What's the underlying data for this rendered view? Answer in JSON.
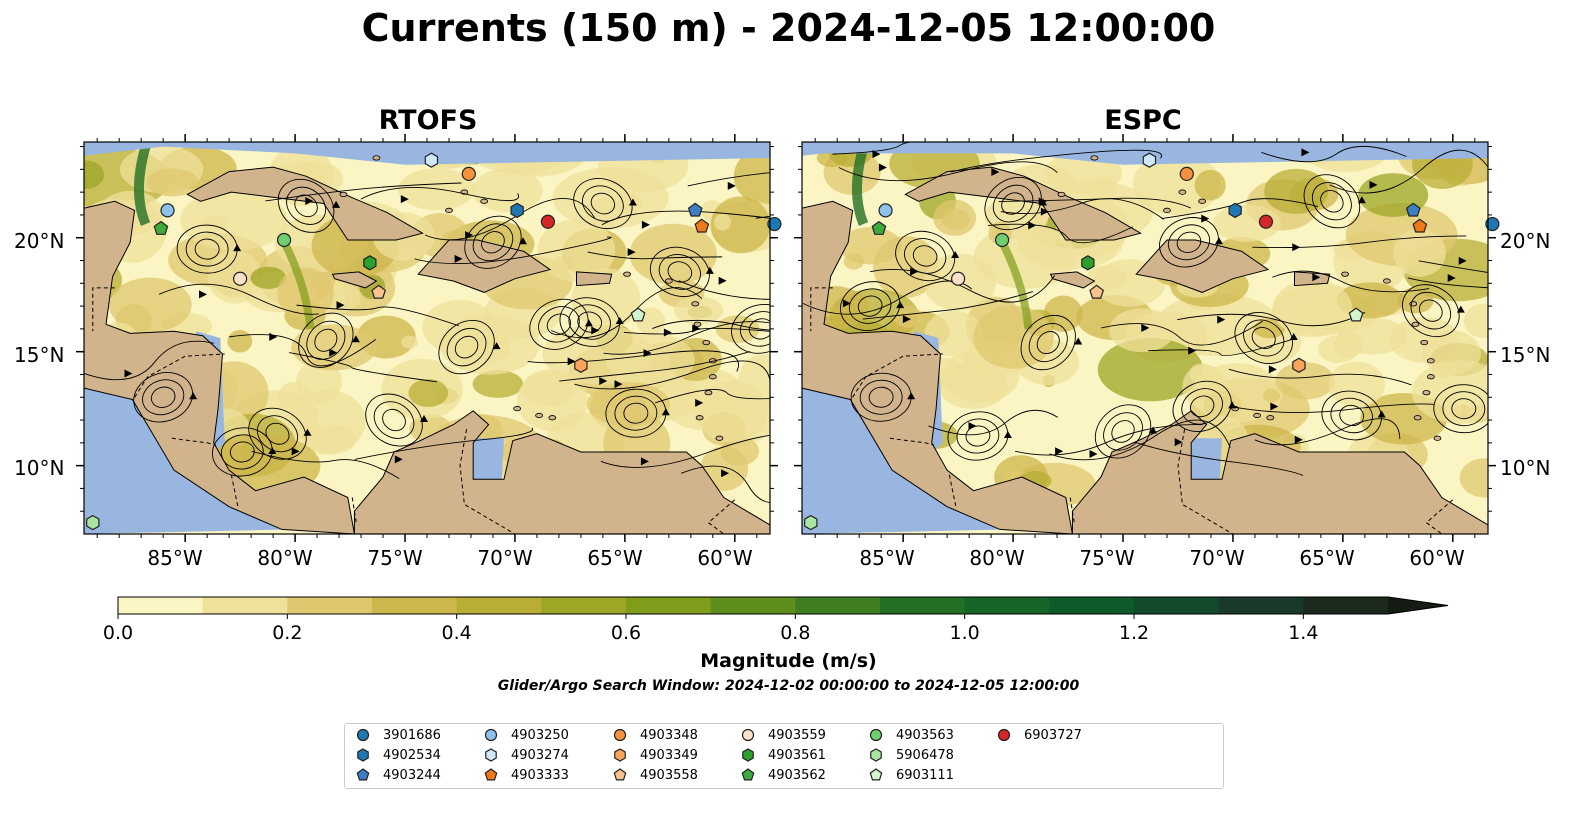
{
  "title": "Currents (150 m) - 2024-12-05 12:00:00",
  "panels": [
    {
      "title": "RTOFS"
    },
    {
      "title": "ESPC"
    }
  ],
  "axes": {
    "lat_ticks": [
      "20°N",
      "15°N",
      "10°N"
    ],
    "lon_ticks": [
      "85°W",
      "80°W",
      "75°W",
      "70°W",
      "65°W",
      "60°W"
    ],
    "lat_range": [
      7.0,
      24.2
    ],
    "lon_range": [
      -89.6,
      -58.4
    ]
  },
  "colorbar": {
    "label": "Magnitude (m/s)",
    "ticks": [
      "0.0",
      "0.2",
      "0.4",
      "0.6",
      "0.8",
      "1.0",
      "1.2",
      "1.4"
    ],
    "range": [
      0.0,
      1.5
    ],
    "extend": "max",
    "colors": [
      "#fbf5c4",
      "#efe09a",
      "#dfc76f",
      "#cdb64b",
      "#b8ad35",
      "#9da625",
      "#7f9c1a",
      "#5f8d1e",
      "#3f7f22",
      "#237024",
      "#146526",
      "#0f5a2b",
      "#134a2a",
      "#19392a",
      "#1c2a1e",
      "#141c14"
    ]
  },
  "search_window": "Glider/Argo Search Window: 2024-12-02 00:00:00 to 2024-12-05 12:00:00",
  "map_colors": {
    "land": "#d2b48c",
    "water": "#98b6e0",
    "streamline": "#000000"
  },
  "floats": [
    {
      "id": "3901686",
      "marker": "circle",
      "color": "#1f77b4",
      "lon": -58.2,
      "lat": 20.6
    },
    {
      "id": "4902534",
      "marker": "hexagon",
      "color": "#1f77b4",
      "lon": -69.9,
      "lat": 21.2
    },
    {
      "id": "4903244",
      "marker": "pentagon",
      "color": "#3d7fc0",
      "lon": -61.8,
      "lat": 21.2
    },
    {
      "id": "4903250",
      "marker": "circle",
      "color": "#8ec2ee",
      "lon": -85.8,
      "lat": 21.2
    },
    {
      "id": "4903274",
      "marker": "hexagon",
      "color": "#cfe6fb",
      "lon": -73.8,
      "lat": 23.4
    },
    {
      "id": "4903333",
      "marker": "pentagon",
      "color": "#f07a1a",
      "lon": -61.5,
      "lat": 20.5
    },
    {
      "id": "4903348",
      "marker": "circle",
      "color": "#f6923d",
      "lon": -72.1,
      "lat": 22.8
    },
    {
      "id": "4903349",
      "marker": "hexagon",
      "color": "#fba45c",
      "lon": -67.0,
      "lat": 14.4
    },
    {
      "id": "4903558",
      "marker": "pentagon",
      "color": "#f9c28f",
      "lon": -76.2,
      "lat": 17.6
    },
    {
      "id": "4903559",
      "marker": "circle",
      "color": "#fde0c7",
      "lon": -82.5,
      "lat": 18.2
    },
    {
      "id": "4903561",
      "marker": "hexagon",
      "color": "#2ca02c",
      "lon": -76.6,
      "lat": 18.9
    },
    {
      "id": "4903562",
      "marker": "pentagon",
      "color": "#3eaa3e",
      "lon": -86.1,
      "lat": 20.4
    },
    {
      "id": "4903563",
      "marker": "circle",
      "color": "#6fcf6f",
      "lon": -80.5,
      "lat": 19.9
    },
    {
      "id": "5906478",
      "marker": "hexagon",
      "color": "#a8e6a1",
      "lon": -89.2,
      "lat": 7.5
    },
    {
      "id": "6903111",
      "marker": "pentagon",
      "color": "#d2f5cf",
      "lon": -64.4,
      "lat": 16.6
    },
    {
      "id": "6903727",
      "marker": "circle",
      "color": "#d62728",
      "lon": -68.5,
      "lat": 20.7
    }
  ]
}
